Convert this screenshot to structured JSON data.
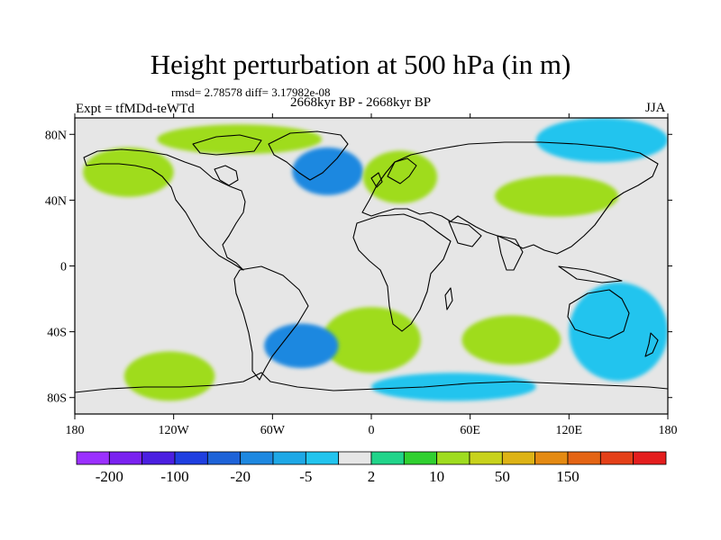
{
  "chart_data": {
    "type": "heatmap",
    "title": "Height perturbation at 500 hPa (in m)",
    "stats_line": "rmsd= 2.78578 diff= 3.17982e-08",
    "left_label": "Expt = tfMDd-teWTd",
    "center_label": "2668kyr BP - 2668kyr BP",
    "right_label": "JJA",
    "xlim": [
      -180,
      180
    ],
    "ylim": [
      -90,
      90
    ],
    "x_ticks": [
      {
        "value": -180,
        "label": "180"
      },
      {
        "value": -120,
        "label": "120W"
      },
      {
        "value": -60,
        "label": "60W"
      },
      {
        "value": 0,
        "label": "0"
      },
      {
        "value": 60,
        "label": "60E"
      },
      {
        "value": 120,
        "label": "120E"
      },
      {
        "value": 180,
        "label": "180"
      }
    ],
    "y_ticks": [
      {
        "value": 80,
        "label": "80N"
      },
      {
        "value": 40,
        "label": "40N"
      },
      {
        "value": 0,
        "label": "0"
      },
      {
        "value": -40,
        "label": "40S"
      },
      {
        "value": -80,
        "label": "80S"
      }
    ],
    "colorbar": {
      "colors": [
        "#9b30ff",
        "#7a22f0",
        "#4b1fe0",
        "#1f3fe0",
        "#1e63d8",
        "#1e88e0",
        "#1ea8e6",
        "#22c4ee",
        "#e6e6e6",
        "#21d48a",
        "#30d030",
        "#9fdc1f",
        "#c8d21c",
        "#ddb315",
        "#e48a12",
        "#e46414",
        "#e44018",
        "#e41e1e"
      ],
      "labels": [
        {
          "boundary": 1,
          "text": "-200"
        },
        {
          "boundary": 3,
          "text": "-100"
        },
        {
          "boundary": 5,
          "text": "-20"
        },
        {
          "boundary": 7,
          "text": "-5"
        },
        {
          "boundary": 9,
          "text": "2"
        },
        {
          "boundary": 11,
          "text": "10"
        },
        {
          "boundary": 13,
          "text": "50"
        },
        {
          "boundary": 15,
          "text": "150"
        }
      ]
    },
    "anomaly_regions": [
      {
        "name": "arctic-canada-positive",
        "level": "10",
        "lon": [
          -130,
          -30
        ],
        "lat": [
          68,
          86
        ]
      },
      {
        "name": "north-atlantic-negative",
        "level": "-20",
        "lon": [
          -48,
          -5
        ],
        "lat": [
          43,
          72
        ]
      },
      {
        "name": "north-pacific-positive",
        "level": "10",
        "lon": [
          -175,
          -120
        ],
        "lat": [
          42,
          72
        ]
      },
      {
        "name": "europe-positive",
        "level": "10",
        "lon": [
          -5,
          40
        ],
        "lat": [
          38,
          70
        ]
      },
      {
        "name": "central-asia-positive",
        "level": "10",
        "lon": [
          75,
          150
        ],
        "lat": [
          30,
          55
        ]
      },
      {
        "name": "siberia-negative",
        "level": "-5",
        "lon": [
          100,
          180
        ],
        "lat": [
          63,
          90
        ]
      },
      {
        "name": "south-pacific-positive",
        "level": "10",
        "lon": [
          -150,
          -95
        ],
        "lat": [
          -82,
          -52
        ]
      },
      {
        "name": "south-atlantic-positive",
        "level": "10",
        "lon": [
          -30,
          30
        ],
        "lat": [
          -65,
          -25
        ]
      },
      {
        "name": "indian-ocean-positive",
        "level": "10",
        "lon": [
          55,
          115
        ],
        "lat": [
          -60,
          -30
        ]
      },
      {
        "name": "drake-passage-negative",
        "level": "-20",
        "lon": [
          -65,
          -20
        ],
        "lat": [
          -62,
          -35
        ]
      },
      {
        "name": "southern-ocean-negative",
        "level": "-5",
        "lon": [
          0,
          100
        ],
        "lat": [
          -82,
          -65
        ]
      },
      {
        "name": "tasman-negative",
        "level": "-5",
        "lon": [
          120,
          180
        ],
        "lat": [
          -70,
          -10
        ]
      }
    ]
  }
}
